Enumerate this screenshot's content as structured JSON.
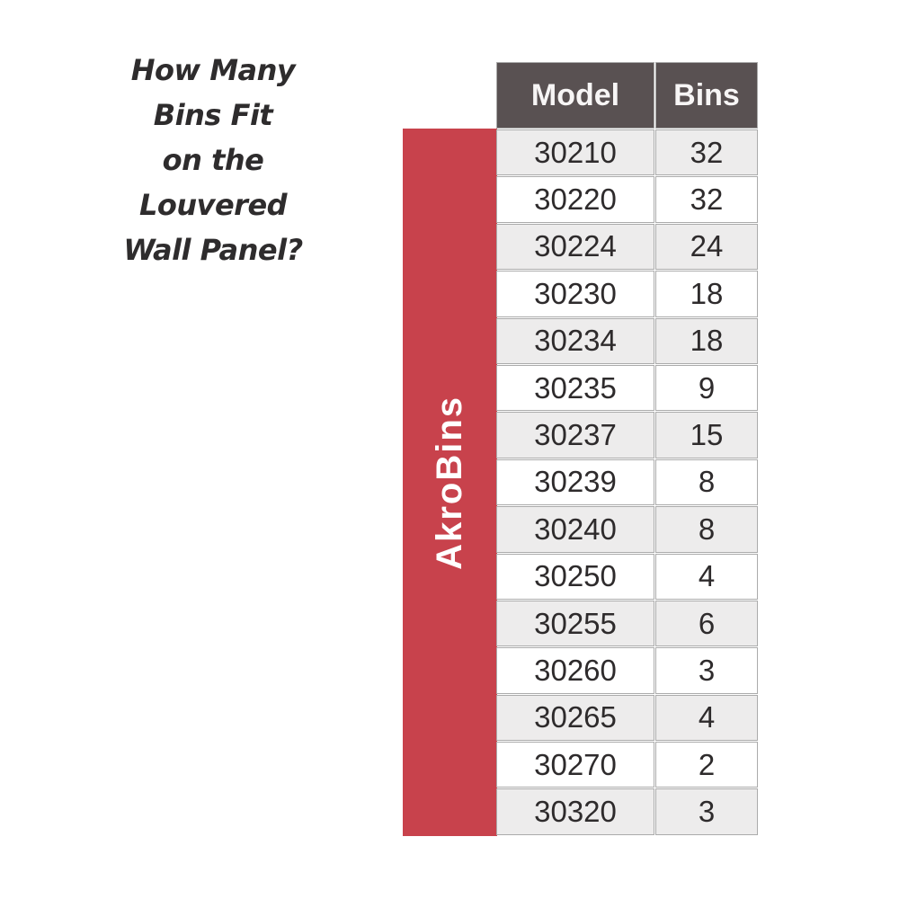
{
  "title": {
    "lines": [
      "How Many",
      "Bins Fit",
      "on the",
      "Louvered",
      "Wall Panel?"
    ]
  },
  "side_label": {
    "text": "AkroBins"
  },
  "table": {
    "columns": [
      "Model",
      "Bins"
    ],
    "rows": [
      {
        "model": "30210",
        "bins": "32"
      },
      {
        "model": "30220",
        "bins": "32"
      },
      {
        "model": "30224",
        "bins": "24"
      },
      {
        "model": "30230",
        "bins": "18"
      },
      {
        "model": "30234",
        "bins": "18"
      },
      {
        "model": "30235",
        "bins": "9"
      },
      {
        "model": "30237",
        "bins": "15"
      },
      {
        "model": "30239",
        "bins": "8"
      },
      {
        "model": "30240",
        "bins": "8"
      },
      {
        "model": "30250",
        "bins": "4"
      },
      {
        "model": "30255",
        "bins": "6"
      },
      {
        "model": "30260",
        "bins": "3"
      },
      {
        "model": "30265",
        "bins": "4"
      },
      {
        "model": "30270",
        "bins": "2"
      },
      {
        "model": "30320",
        "bins": "3"
      }
    ]
  },
  "colors": {
    "accent_red": "#C8424C",
    "header_bg": "#595152",
    "row_alt_bg": "#EDECEC",
    "grid_line": "#ABABAB",
    "text_dark": "#2E2B2C"
  },
  "chart_data": {
    "type": "table",
    "title": "How Many Bins Fit on the Louvered Wall Panel?",
    "group_label": "AkroBins",
    "columns": [
      "Model",
      "Bins"
    ],
    "rows": [
      [
        "30210",
        32
      ],
      [
        "30220",
        32
      ],
      [
        "30224",
        24
      ],
      [
        "30230",
        18
      ],
      [
        "30234",
        18
      ],
      [
        "30235",
        9
      ],
      [
        "30237",
        15
      ],
      [
        "30239",
        8
      ],
      [
        "30240",
        8
      ],
      [
        "30250",
        4
      ],
      [
        "30255",
        6
      ],
      [
        "30260",
        3
      ],
      [
        "30265",
        4
      ],
      [
        "30270",
        2
      ],
      [
        "30320",
        3
      ]
    ]
  }
}
